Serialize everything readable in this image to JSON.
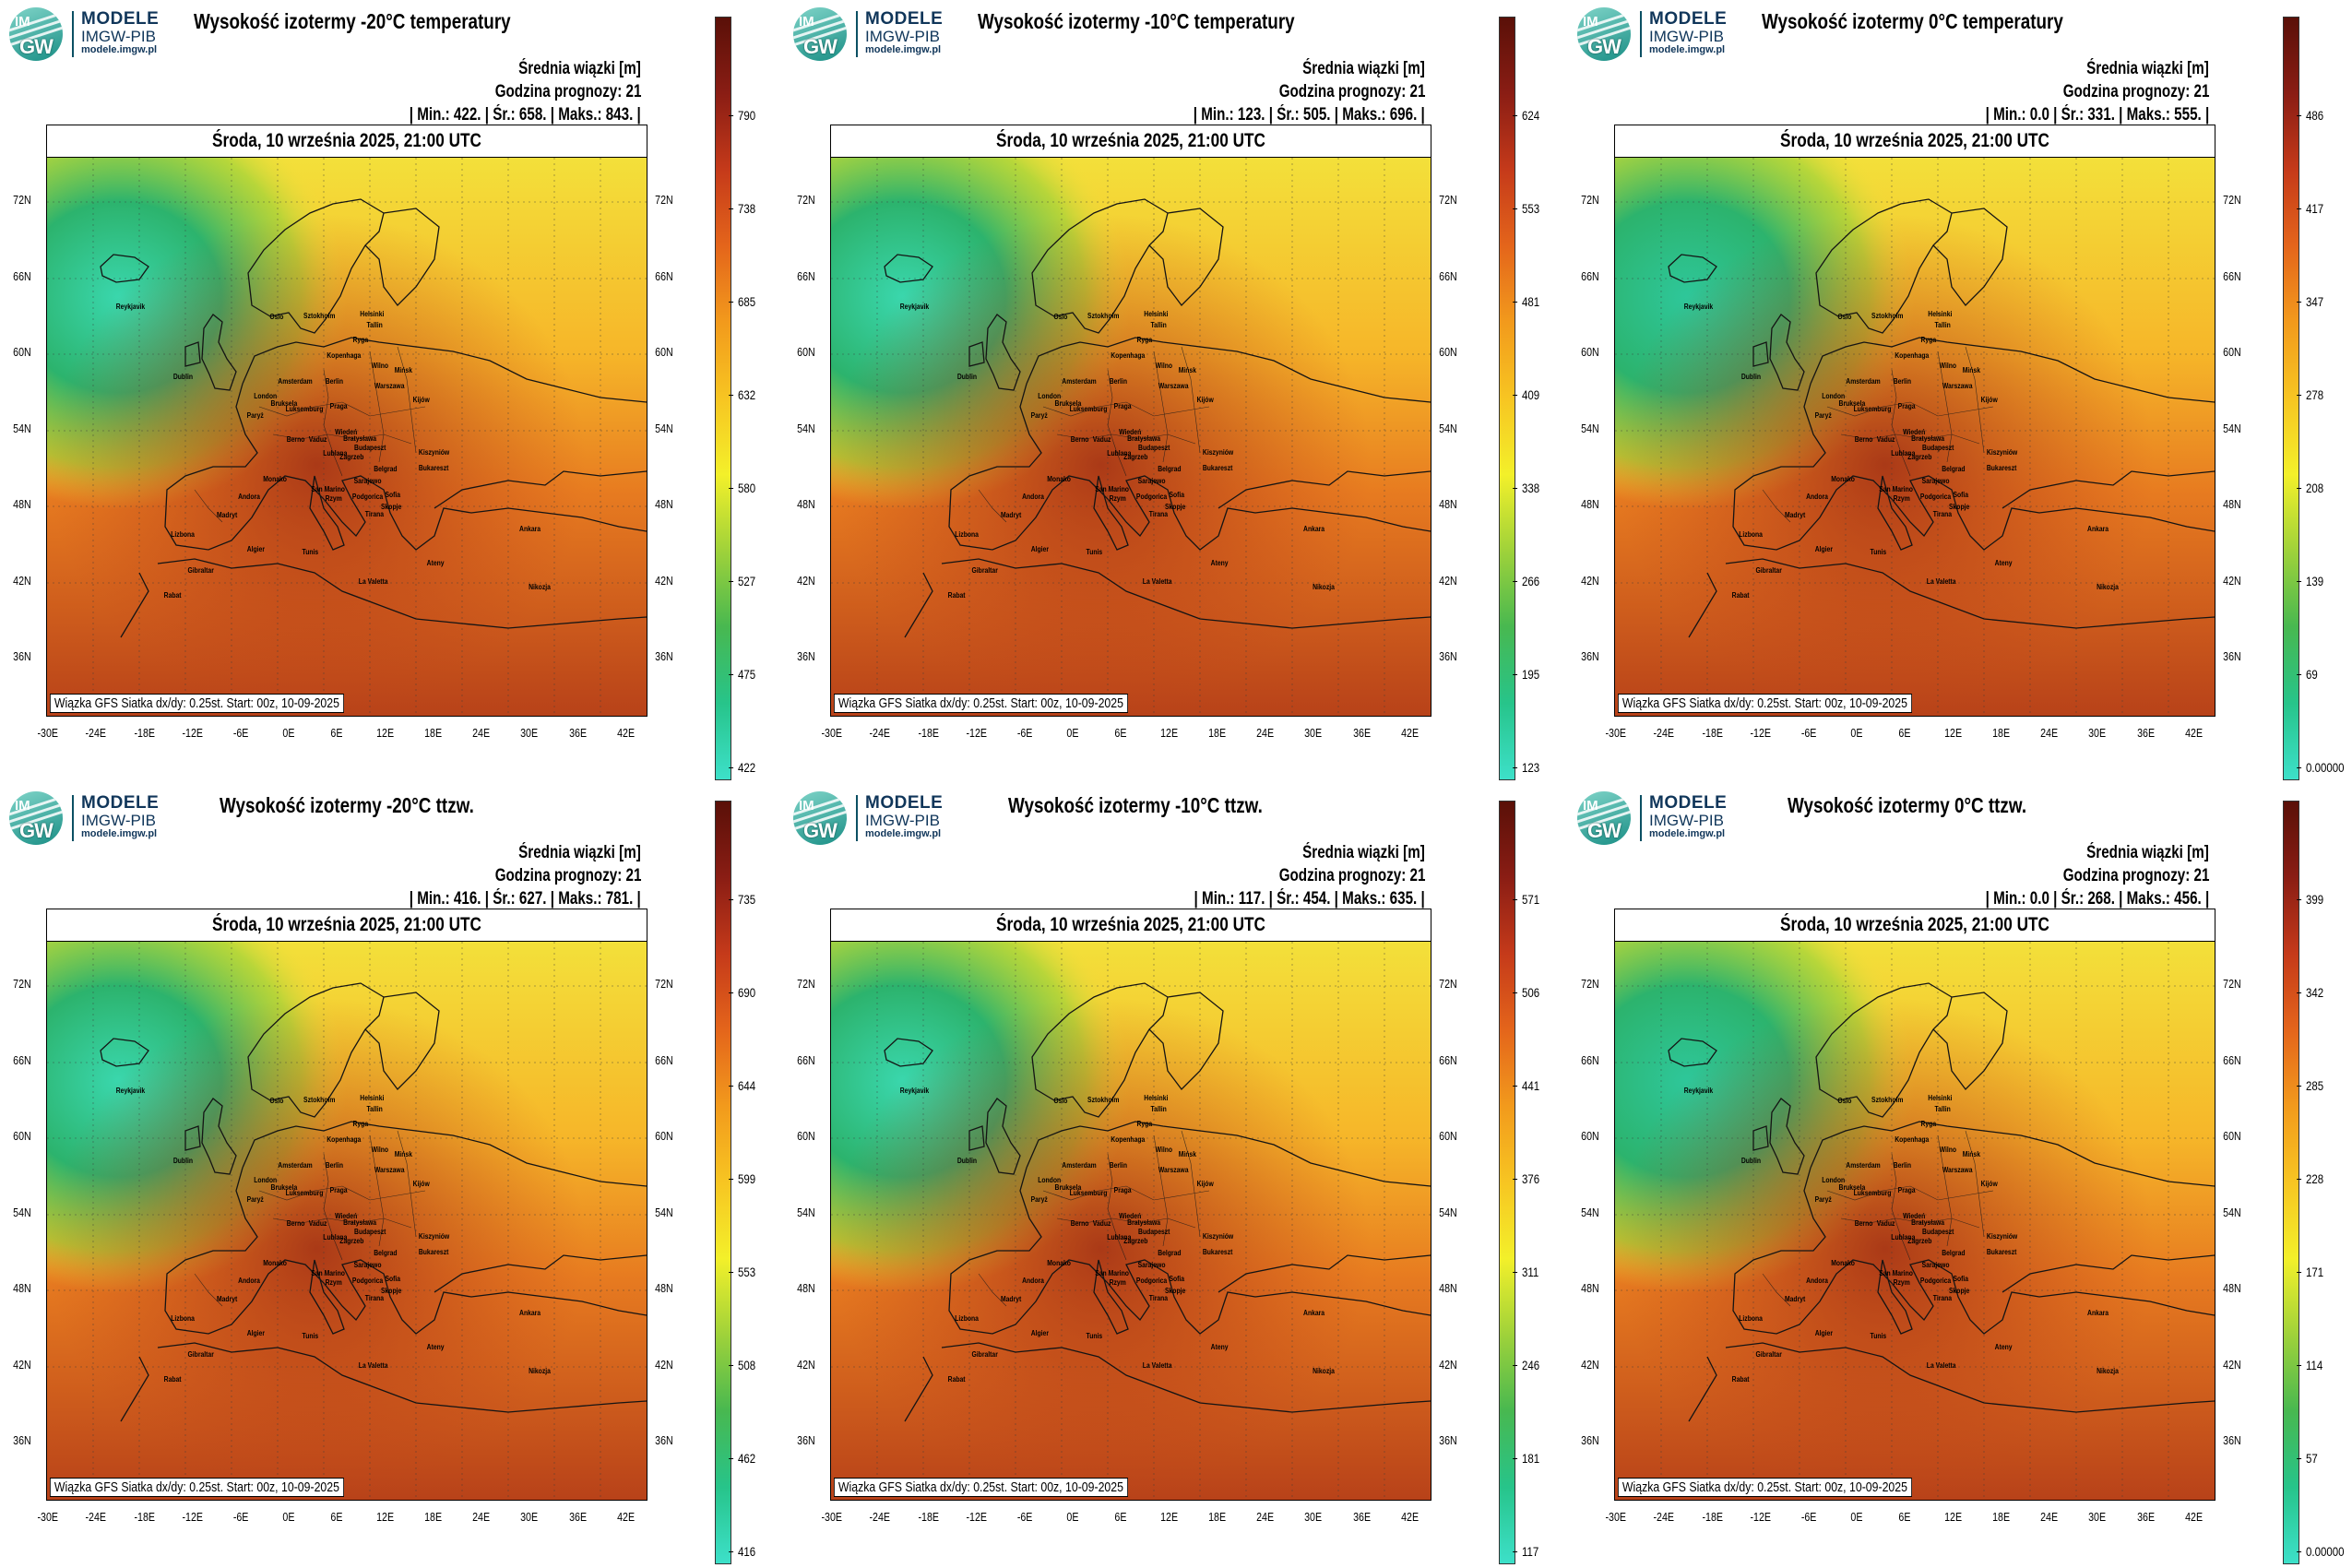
{
  "logo": {
    "badge_top": "IM",
    "badge_bottom": "GW",
    "line1": "MODELE",
    "line2": "IMGW-PIB",
    "line3": "modele.imgw.pl"
  },
  "common": {
    "mean_label": "Średnia wiązki [m]",
    "forecast_hour": "Godzina prognozy: 21",
    "date": "Środa, 10 września 2025, 21:00 UTC",
    "footer": "Wiązka GFS Siatka dx/dy: 0.25st. Start: 00z, 10-09-2025",
    "lat_labels": [
      "72N",
      "66N",
      "60N",
      "54N",
      "48N",
      "42N",
      "36N"
    ],
    "lon_labels": [
      "-30E",
      "-24E",
      "-18E",
      "-12E",
      "-6E",
      "0E",
      "6E",
      "12E",
      "18E",
      "24E",
      "30E",
      "36E",
      "42E"
    ],
    "cities": [
      "Reykjavik",
      "Oslo",
      "Sztokholm",
      "Helsinki",
      "Tallin",
      "Ryga",
      "Kopenhaga",
      "Wilno",
      "Mińsk",
      "Dublin",
      "Amsterdam",
      "Berlin",
      "Warszawa",
      "London",
      "Bruksela",
      "Luksemburg",
      "Paryż",
      "Praga",
      "Kijów",
      "Wiedeń",
      "Bratysława",
      "Budapeszt",
      "Kiszyniów",
      "Berno",
      "Vaduz",
      "Lublana",
      "Zagrzeb",
      "Belgrad",
      "Bukareszt",
      "Monako",
      "San Marino",
      "Sarajewo",
      "Podgorica",
      "Sofia",
      "Skopje",
      "Tirana",
      "Rzym",
      "Andora",
      "Madryt",
      "Lizbona",
      "Gibraltar",
      "Algier",
      "Tunis",
      "Ankara",
      "Ateny",
      "Rabat",
      "La Valetta",
      "Nikozja"
    ]
  },
  "panels": [
    {
      "title": "Wysokość izotermy -20°C temperatury",
      "stats": "| Min.:   422. | Śr.:   658. | Maks.:   843. |",
      "colorbar_ticks": [
        "790",
        "738",
        "685",
        "632",
        "580",
        "527",
        "475",
        "422"
      ]
    },
    {
      "title": "Wysokość izotermy -10°C temperatury",
      "stats": "| Min.:   123. | Śr.:   505. | Maks.:   696. |",
      "colorbar_ticks": [
        "624",
        "553",
        "481",
        "409",
        "338",
        "266",
        "195",
        "123"
      ]
    },
    {
      "title": "Wysokość izotermy 0°C temperatury",
      "stats": "| Min.:   0.0 | Śr.:   331. | Maks.:   555. |",
      "colorbar_ticks": [
        "486",
        "417",
        "347",
        "278",
        "208",
        "139",
        "69",
        "0.00000"
      ]
    },
    {
      "title": "Wysokość izotermy -20°C ttzw.",
      "stats": "| Min.:   416. | Śr.:   627. | Maks.:   781. |",
      "colorbar_ticks": [
        "735",
        "690",
        "644",
        "599",
        "553",
        "508",
        "462",
        "416"
      ]
    },
    {
      "title": "Wysokość izotermy -10°C ttzw.",
      "stats": "| Min.:   117. | Śr.:   454. | Maks.:   635. |",
      "colorbar_ticks": [
        "571",
        "506",
        "441",
        "376",
        "311",
        "246",
        "181",
        "117"
      ]
    },
    {
      "title": "Wysokość izotermy 0°C ttzw.",
      "stats": "| Min.:   0.0 | Śr.:   268. | Maks.:   456. |",
      "colorbar_ticks": [
        "399",
        "342",
        "285",
        "228",
        "171",
        "114",
        "57",
        "0.00000"
      ]
    }
  ],
  "colors": {
    "colorbar": [
      "#3de0c9",
      "#27c48a",
      "#48b850",
      "#9fd23a",
      "#f3f02a",
      "#f7c522",
      "#f29a1c",
      "#e4651b",
      "#c53a1a",
      "#8a1d14",
      "#5a1008"
    ],
    "land_outline": "#1a1a1a"
  }
}
